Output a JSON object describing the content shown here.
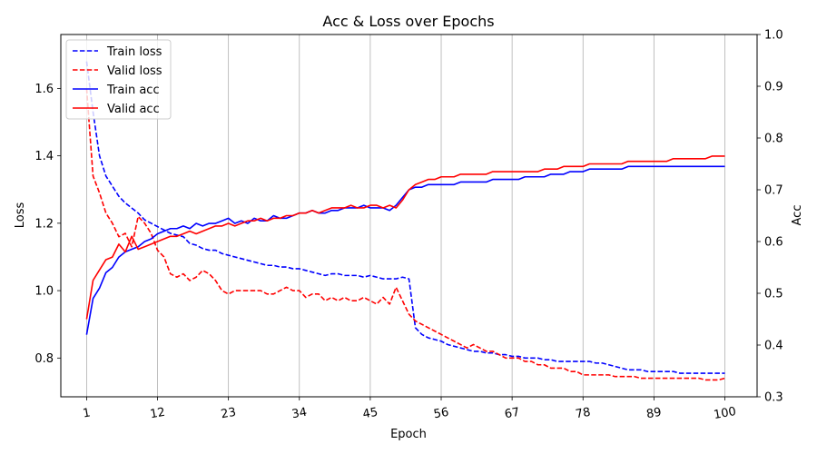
{
  "chart_data": {
    "type": "line",
    "title": "Acc & Loss over Epochs",
    "xlabel": "Epoch",
    "ylabel_left": "Loss",
    "ylabel_right": "Acc",
    "xlim": [
      -3,
      105
    ],
    "ylim_left": [
      0.685,
      1.76
    ],
    "ylim_right": [
      0.3,
      1.0
    ],
    "x_ticks": [
      1,
      12,
      23,
      34,
      45,
      56,
      67,
      78,
      89,
      100
    ],
    "y_ticks_left": [
      0.8,
      1.0,
      1.2,
      1.4,
      1.6
    ],
    "y_ticks_right": [
      0.3,
      0.4,
      0.5,
      0.6,
      0.7,
      0.8,
      0.9,
      1.0
    ],
    "x_tick_rotation_deg": -10,
    "grid": "vertical",
    "legend_position": "upper-left",
    "series": [
      {
        "name": "Train loss",
        "axis": "left",
        "color": "#0000ff",
        "dash": "dashed",
        "x_start": 1,
        "values": [
          1.68,
          1.53,
          1.4,
          1.34,
          1.31,
          1.28,
          1.26,
          1.245,
          1.23,
          1.21,
          1.2,
          1.19,
          1.18,
          1.17,
          1.165,
          1.16,
          1.14,
          1.135,
          1.125,
          1.12,
          1.12,
          1.11,
          1.105,
          1.1,
          1.095,
          1.09,
          1.085,
          1.08,
          1.075,
          1.075,
          1.07,
          1.07,
          1.065,
          1.065,
          1.06,
          1.055,
          1.05,
          1.045,
          1.05,
          1.05,
          1.045,
          1.045,
          1.045,
          1.04,
          1.045,
          1.04,
          1.035,
          1.035,
          1.035,
          1.04,
          1.035,
          0.89,
          0.87,
          0.86,
          0.855,
          0.85,
          0.84,
          0.835,
          0.83,
          0.825,
          0.82,
          0.82,
          0.815,
          0.815,
          0.81,
          0.81,
          0.805,
          0.805,
          0.8,
          0.8,
          0.8,
          0.795,
          0.795,
          0.79,
          0.79,
          0.79,
          0.79,
          0.79,
          0.79,
          0.785,
          0.785,
          0.78,
          0.775,
          0.77,
          0.765,
          0.765,
          0.765,
          0.76,
          0.76,
          0.76,
          0.76,
          0.76,
          0.755,
          0.755,
          0.755,
          0.755,
          0.755,
          0.755,
          0.755,
          0.755
        ]
      },
      {
        "name": "Valid loss",
        "axis": "left",
        "color": "#ff0000",
        "dash": "dashed",
        "x_start": 1,
        "values": [
          1.6,
          1.34,
          1.29,
          1.23,
          1.2,
          1.16,
          1.17,
          1.13,
          1.22,
          1.2,
          1.17,
          1.12,
          1.1,
          1.05,
          1.04,
          1.05,
          1.03,
          1.04,
          1.06,
          1.05,
          1.03,
          1.0,
          0.99,
          1.0,
          1.0,
          1.0,
          1.0,
          1.0,
          0.99,
          0.99,
          1.0,
          1.01,
          1.0,
          1.0,
          0.98,
          0.99,
          0.99,
          0.97,
          0.98,
          0.97,
          0.98,
          0.97,
          0.97,
          0.98,
          0.97,
          0.96,
          0.98,
          0.96,
          1.01,
          0.97,
          0.93,
          0.91,
          0.9,
          0.89,
          0.88,
          0.87,
          0.86,
          0.85,
          0.84,
          0.83,
          0.84,
          0.83,
          0.82,
          0.82,
          0.81,
          0.8,
          0.8,
          0.8,
          0.79,
          0.79,
          0.78,
          0.78,
          0.77,
          0.77,
          0.77,
          0.76,
          0.76,
          0.75,
          0.75,
          0.75,
          0.75,
          0.75,
          0.745,
          0.745,
          0.745,
          0.745,
          0.74,
          0.74,
          0.74,
          0.74,
          0.74,
          0.74,
          0.74,
          0.74,
          0.74,
          0.74,
          0.735,
          0.735,
          0.735,
          0.74
        ]
      },
      {
        "name": "Train acc",
        "axis": "right",
        "color": "#0000ff",
        "dash": "solid",
        "x_start": 1,
        "values": [
          0.42,
          0.49,
          0.51,
          0.54,
          0.55,
          0.57,
          0.58,
          0.585,
          0.59,
          0.6,
          0.605,
          0.615,
          0.62,
          0.625,
          0.625,
          0.63,
          0.625,
          0.635,
          0.63,
          0.635,
          0.635,
          0.64,
          0.645,
          0.635,
          0.64,
          0.635,
          0.645,
          0.64,
          0.64,
          0.65,
          0.645,
          0.645,
          0.65,
          0.655,
          0.655,
          0.66,
          0.655,
          0.655,
          0.66,
          0.66,
          0.665,
          0.665,
          0.665,
          0.67,
          0.665,
          0.665,
          0.665,
          0.66,
          0.67,
          0.685,
          0.7,
          0.705,
          0.705,
          0.71,
          0.71,
          0.71,
          0.71,
          0.71,
          0.715,
          0.715,
          0.715,
          0.715,
          0.715,
          0.72,
          0.72,
          0.72,
          0.72,
          0.72,
          0.725,
          0.725,
          0.725,
          0.725,
          0.73,
          0.73,
          0.73,
          0.735,
          0.735,
          0.735,
          0.74,
          0.74,
          0.74,
          0.74,
          0.74,
          0.74,
          0.745,
          0.745,
          0.745,
          0.745,
          0.745,
          0.745,
          0.745,
          0.745,
          0.745,
          0.745,
          0.745,
          0.745,
          0.745,
          0.745,
          0.745,
          0.745
        ]
      },
      {
        "name": "Valid acc",
        "axis": "right",
        "color": "#ff0000",
        "dash": "solid",
        "x_start": 1,
        "values": [
          0.45,
          0.525,
          0.545,
          0.565,
          0.57,
          0.595,
          0.58,
          0.61,
          0.585,
          0.59,
          0.595,
          0.6,
          0.605,
          0.61,
          0.61,
          0.615,
          0.62,
          0.615,
          0.62,
          0.625,
          0.63,
          0.63,
          0.635,
          0.63,
          0.635,
          0.64,
          0.64,
          0.645,
          0.64,
          0.645,
          0.645,
          0.65,
          0.65,
          0.655,
          0.655,
          0.66,
          0.655,
          0.66,
          0.665,
          0.665,
          0.665,
          0.67,
          0.665,
          0.665,
          0.67,
          0.67,
          0.665,
          0.67,
          0.665,
          0.68,
          0.7,
          0.71,
          0.715,
          0.72,
          0.72,
          0.725,
          0.725,
          0.725,
          0.73,
          0.73,
          0.73,
          0.73,
          0.73,
          0.735,
          0.735,
          0.735,
          0.735,
          0.735,
          0.735,
          0.735,
          0.735,
          0.74,
          0.74,
          0.74,
          0.745,
          0.745,
          0.745,
          0.745,
          0.75,
          0.75,
          0.75,
          0.75,
          0.75,
          0.75,
          0.755,
          0.755,
          0.755,
          0.755,
          0.755,
          0.755,
          0.755,
          0.76,
          0.76,
          0.76,
          0.76,
          0.76,
          0.76,
          0.765,
          0.765,
          0.765
        ]
      }
    ]
  }
}
